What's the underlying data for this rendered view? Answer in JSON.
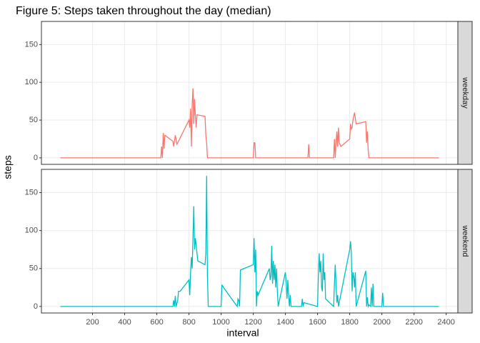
{
  "title": "Figure 5: Steps taken throughout the day (median)",
  "x_label": "interval",
  "y_label": "steps",
  "chart_data": [
    {
      "type": "line",
      "facet": "weekday",
      "color": "#F8766D",
      "x": [
        0,
        625,
        630,
        635,
        640,
        645,
        650,
        700,
        705,
        715,
        720,
        725,
        730,
        800,
        805,
        810,
        815,
        820,
        825,
        830,
        835,
        840,
        845,
        850,
        900,
        905,
        910,
        915,
        1200,
        1205,
        1210,
        1215,
        1540,
        1545,
        1550,
        1700,
        1705,
        1710,
        1715,
        1720,
        1725,
        1730,
        1735,
        1745,
        1800,
        1805,
        1810,
        1815,
        1820,
        1830,
        1840,
        1900,
        1905,
        1910,
        1915,
        1920,
        2355
      ],
      "values": [
        0,
        0,
        15,
        0,
        33,
        12,
        30,
        22,
        15,
        30,
        25,
        18,
        20,
        50,
        40,
        65,
        15,
        70,
        92,
        45,
        78,
        55,
        40,
        57,
        55,
        30,
        20,
        0,
        0,
        20,
        20,
        0,
        0,
        18,
        0,
        0,
        25,
        0,
        20,
        35,
        15,
        40,
        20,
        15,
        25,
        45,
        38,
        40,
        50,
        60,
        45,
        48,
        20,
        35,
        10,
        0,
        0
      ],
      "xlim": [
        -117.75,
        2472.75
      ],
      "ylim": [
        -8.6,
        180.6
      ],
      "xticks": [
        200,
        400,
        600,
        800,
        1000,
        1200,
        1400,
        1600,
        1800,
        2000,
        2200,
        2400
      ],
      "yticks": [
        0,
        50,
        100,
        150
      ],
      "grid": true
    },
    {
      "type": "line",
      "facet": "weekend",
      "color": "#00BFC4",
      "x": [
        0,
        700,
        705,
        710,
        715,
        720,
        730,
        735,
        745,
        800,
        805,
        810,
        815,
        820,
        825,
        830,
        835,
        840,
        845,
        850,
        855,
        900,
        905,
        910,
        915,
        920,
        1000,
        1005,
        1010,
        1015,
        1100,
        1105,
        1110,
        1115,
        1120,
        1200,
        1205,
        1210,
        1215,
        1220,
        1225,
        1230,
        1300,
        1305,
        1310,
        1315,
        1320,
        1325,
        1330,
        1335,
        1340,
        1345,
        1350,
        1355,
        1400,
        1405,
        1410,
        1415,
        1420,
        1425,
        1430,
        1435,
        1500,
        1505,
        1510,
        1515,
        1600,
        1605,
        1610,
        1615,
        1620,
        1625,
        1630,
        1635,
        1640,
        1645,
        1650,
        1700,
        1705,
        1710,
        1715,
        1720,
        1725,
        1730,
        1800,
        1805,
        1810,
        1815,
        1820,
        1825,
        1830,
        1835,
        1840,
        1900,
        1905,
        1910,
        1915,
        1920,
        1930,
        1935,
        1940,
        1945,
        1950,
        2000,
        2005,
        2010,
        2100,
        2355
      ],
      "values": [
        0,
        0,
        8,
        0,
        14,
        0,
        8,
        20,
        20,
        35,
        15,
        45,
        65,
        50,
        90,
        132,
        75,
        90,
        80,
        70,
        60,
        55,
        70,
        172,
        40,
        0,
        0,
        28,
        27,
        25,
        0,
        10,
        8,
        0,
        48,
        55,
        90,
        45,
        75,
        0,
        20,
        15,
        50,
        35,
        40,
        80,
        30,
        60,
        35,
        55,
        25,
        50,
        20,
        0,
        45,
        30,
        10,
        35,
        15,
        0,
        15,
        0,
        0,
        10,
        0,
        5,
        0,
        40,
        70,
        45,
        60,
        25,
        20,
        70,
        35,
        45,
        10,
        0,
        30,
        55,
        30,
        5,
        15,
        0,
        75,
        86,
        70,
        20,
        45,
        40,
        25,
        45,
        0,
        47,
        0,
        12,
        0,
        2,
        0,
        25,
        0,
        30,
        0,
        0,
        18,
        0,
        0,
        0
      ],
      "xlim": [
        -117.75,
        2472.75
      ],
      "ylim": [
        -8.6,
        180.6
      ],
      "xticks": [
        200,
        400,
        600,
        800,
        1000,
        1200,
        1400,
        1600,
        1800,
        2000,
        2200,
        2400
      ],
      "yticks": [
        0,
        50,
        100,
        150
      ],
      "grid": true
    }
  ]
}
